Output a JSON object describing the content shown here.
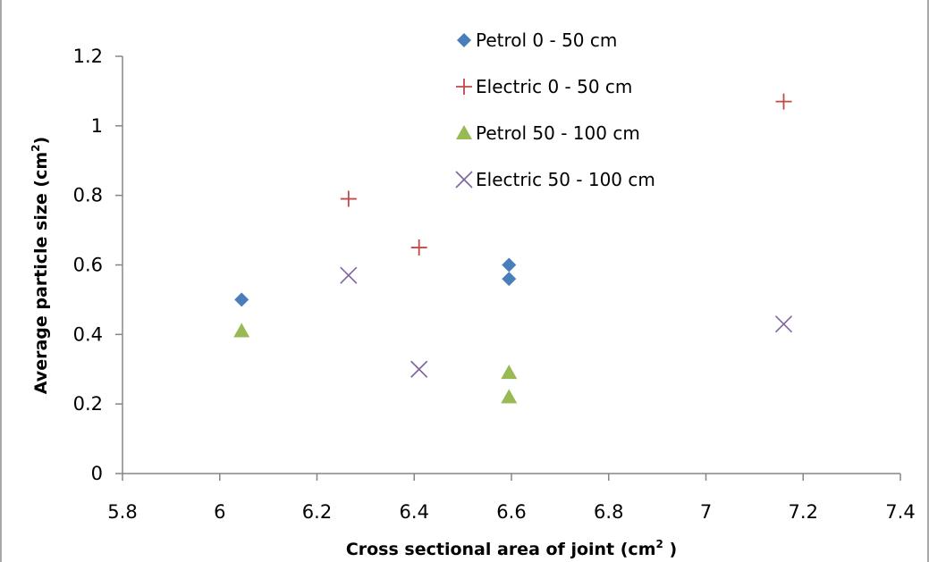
{
  "chart_data": {
    "type": "scatter",
    "title": "",
    "xlabel": "Cross sectional area of joint (cm",
    "xlabel_sup": "2",
    "xlabel_end": " )",
    "ylabel": "Average particle size  (cm",
    "ylabel_sup": "2",
    "ylabel_end": ")",
    "xlim": [
      5.8,
      7.4
    ],
    "ylim": [
      0,
      1.2
    ],
    "xticks": [
      "5.8",
      "6",
      "6.2",
      "6.4",
      "6.6",
      "6.8",
      "7",
      "7.2",
      "7.4"
    ],
    "yticks": [
      "0",
      "0.2",
      "0.4",
      "0.6",
      "0.8",
      "1",
      "1.2"
    ],
    "grid": false,
    "legend_position": "top-center",
    "series": [
      {
        "name": "Petrol 0 - 50 cm",
        "marker": "diamond",
        "color": "#4A7EBB",
        "points": [
          [
            6.045,
            0.5
          ],
          [
            6.595,
            0.6
          ],
          [
            6.595,
            0.56
          ]
        ]
      },
      {
        "name": "Electric  0 - 50 cm",
        "marker": "plus",
        "color": "#BE4B48",
        "points": [
          [
            6.265,
            0.79
          ],
          [
            6.41,
            0.65
          ],
          [
            7.16,
            1.07
          ]
        ]
      },
      {
        "name": "Petrol  50 - 100 cm",
        "marker": "triangle",
        "color": "#98B954",
        "points": [
          [
            6.045,
            0.41
          ],
          [
            6.595,
            0.29
          ],
          [
            6.595,
            0.22
          ]
        ]
      },
      {
        "name": "Electric 50 - 100 cm",
        "marker": "x",
        "color": "#8064A2",
        "points": [
          [
            6.265,
            0.57
          ],
          [
            6.41,
            0.3
          ],
          [
            7.16,
            0.43
          ]
        ]
      }
    ]
  }
}
